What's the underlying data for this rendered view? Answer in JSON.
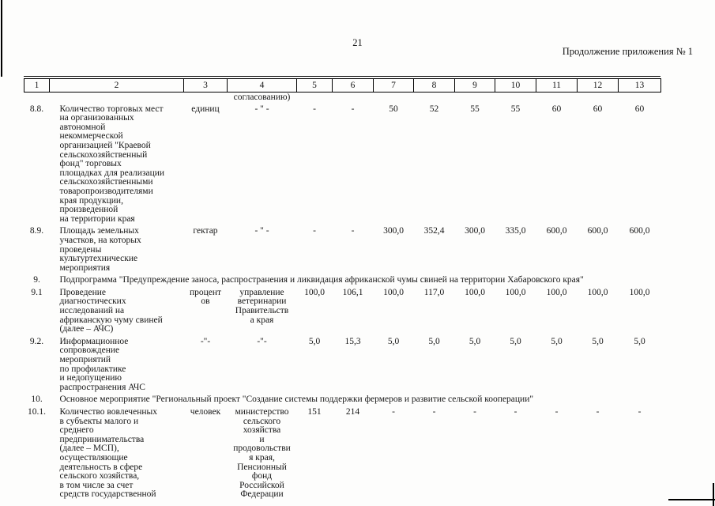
{
  "page": {
    "number": "21",
    "continuation_note": "Продолжение приложения № 1"
  },
  "table": {
    "column_numbers": [
      "1",
      "2",
      "3",
      "4",
      "5",
      "6",
      "7",
      "8",
      "9",
      "10",
      "11",
      "12",
      "13"
    ],
    "carryover_text": "согласованию)",
    "rows": [
      {
        "type": "data",
        "num": "8.8.",
        "name": "Количество торговых мест\nна организованных\nавтономной\nнекоммерческой\nорганизацией \"Краевой\nсельскохозяйственный\nфонд\" торговых\nплощадках для реализации\nсельскохозяйственными\nтоваропроизводителями\nкрая продукции,\nпроизведенной\nна территории края",
        "unit": "единиц",
        "responsible": "- \" -",
        "values": [
          "-",
          "-",
          "50",
          "52",
          "55",
          "55",
          "60",
          "60",
          "60"
        ]
      },
      {
        "type": "data",
        "num": "8.9.",
        "name": "Площадь земельных\nучастков, на которых\nпроведены\nкультуртехнические\nмероприятия",
        "unit": "гектар",
        "responsible": "- \" -",
        "values": [
          "-",
          "-",
          "300,0",
          "352,4",
          "300,0",
          "335,0",
          "600,0",
          "600,0",
          "600,0"
        ]
      },
      {
        "type": "section",
        "num": "9.",
        "title": "Подпрограмма \"Предупреждение заноса, распространения и ликвидация африканской чумы свиней на территории Хабаровского края\""
      },
      {
        "type": "data",
        "num": "9.1",
        "name": "Проведение\nдиагностических\nисследований на\nафриканскую чуму свиней\n(далее – АЧС)",
        "unit": "процент\nов",
        "responsible": "управление\nветеринарии\nПравительств\nа края",
        "values": [
          "100,0",
          "106,1",
          "100,0",
          "117,0",
          "100,0",
          "100,0",
          "100,0",
          "100,0",
          "100,0"
        ]
      },
      {
        "type": "data",
        "num": "9.2.",
        "name": "Информационное\nсопровождение\nмероприятий\nпо профилактике\nи недопущению\nраспространения АЧС",
        "unit": "-\"-",
        "responsible": "-\"-",
        "values": [
          "5,0",
          "15,3",
          "5,0",
          "5,0",
          "5,0",
          "5,0",
          "5,0",
          "5,0",
          "5,0"
        ]
      },
      {
        "type": "section",
        "num": "10.",
        "title": "Основное мероприятие \"Региональный проект \"Создание системы поддержки фермеров и развитие сельской кооперации\""
      },
      {
        "type": "data",
        "num": "10.1.",
        "name": "Количество вовлеченных\nв субъекты малого и\nсреднего\nпредпринимательства\n(далее – МСП),\nосуществляющие\nдеятельность в сфере\nсельского хозяйства,\nв том числе за счет\nсредств государственной",
        "unit": "человек",
        "responsible": "министерство\nсельского\nхозяйства\nи\nпродовольстви\nя края,\nПенсионный\nфонд\nРоссийской\nФедерации",
        "values": [
          "151",
          "214",
          "-",
          "-",
          "-",
          "-",
          "-",
          "-",
          "-"
        ]
      }
    ]
  }
}
